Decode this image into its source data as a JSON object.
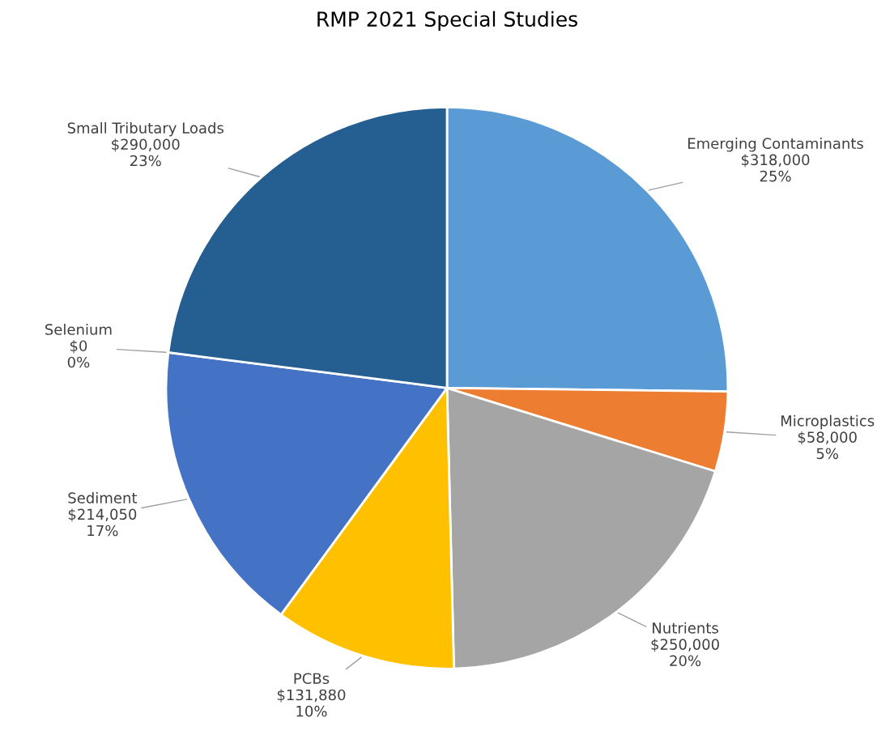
{
  "chart_data": {
    "type": "pie",
    "title": "RMP 2021 Special Studies",
    "categories": [
      "Emerging Contaminants",
      "Microplastics",
      "Nutrients",
      "PCBs",
      "Sediment",
      "Selenium",
      "Small Tributary Loads"
    ],
    "values": [
      318000,
      58000,
      250000,
      131880,
      214050,
      0,
      290000
    ],
    "colors": [
      "#5b9bd5",
      "#ed7d31",
      "#a5a5a5",
      "#ffc000",
      "#4472c4",
      "#70ad47",
      "#255e91"
    ],
    "value_labels": [
      "$318,000\n25%",
      "$58,000\n5%",
      "$250,000\n20%",
      "$131,880\n10%",
      "$214,050\n17%",
      "$0\n0%",
      "$290,000\n23%"
    ],
    "legend": false
  }
}
